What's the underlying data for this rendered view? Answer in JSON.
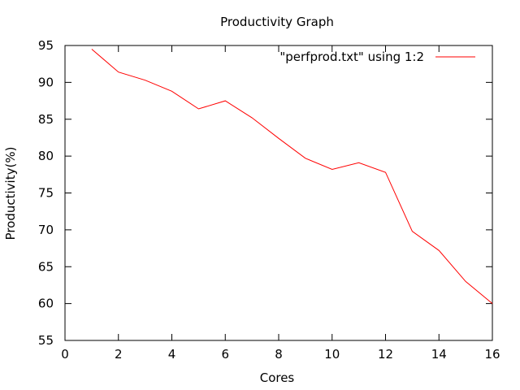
{
  "chart_data": {
    "type": "line",
    "title": "Productivity Graph",
    "xlabel": "Cores",
    "ylabel": "Productivity(%)",
    "xlim": [
      0,
      16
    ],
    "ylim": [
      55,
      95
    ],
    "xticks": [
      0,
      2,
      4,
      6,
      8,
      10,
      12,
      14,
      16
    ],
    "yticks": [
      55,
      60,
      65,
      70,
      75,
      80,
      85,
      90,
      95
    ],
    "grid": false,
    "legend_position": "top-right",
    "series": [
      {
        "name": "\"perfprod.txt\" using 1:2",
        "color": "#ff0000",
        "x": [
          1,
          2,
          3,
          4,
          5,
          6,
          7,
          8,
          9,
          10,
          11,
          12,
          13,
          14,
          15,
          16
        ],
        "y": [
          94.5,
          91.4,
          90.3,
          88.8,
          86.4,
          87.5,
          85.2,
          82.4,
          79.7,
          78.2,
          79.1,
          77.8,
          69.8,
          67.2,
          63.0,
          60.0
        ]
      }
    ]
  }
}
